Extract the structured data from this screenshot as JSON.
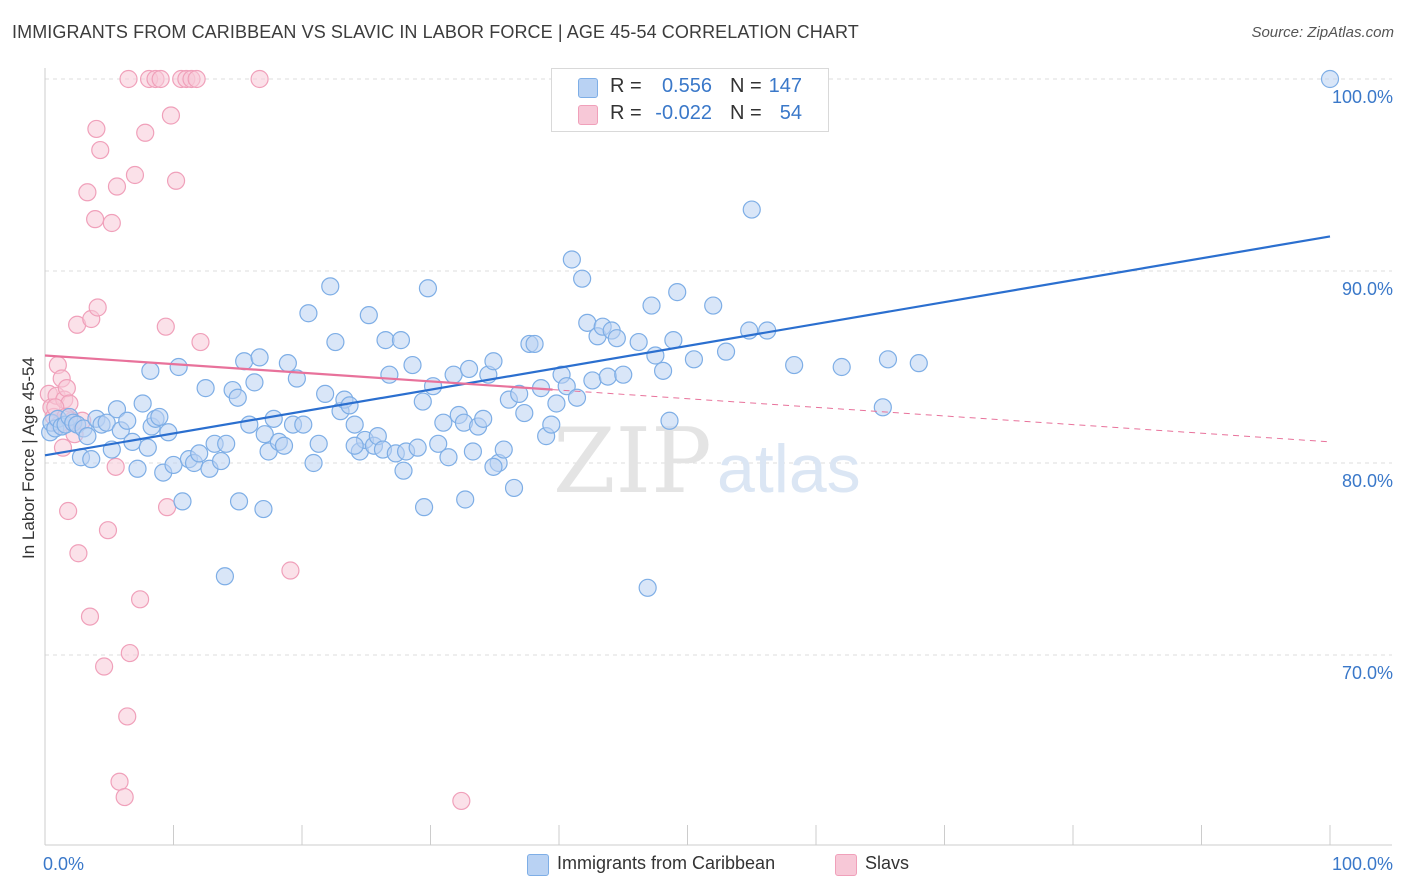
{
  "title": "IMMIGRANTS FROM CARIBBEAN VS SLAVIC IN LABOR FORCE | AGE 45-54 CORRELATION CHART",
  "source": "Source: ZipAtlas.com",
  "watermark": {
    "zip": "ZIP",
    "atlas": "atlas"
  },
  "legend": {
    "r_label": "R =",
    "n_label": "N =",
    "rows": [
      {
        "r": "0.556",
        "n": "147",
        "color": "#7eaee6"
      },
      {
        "r": "-0.022",
        "n": "54",
        "color": "#f2a6bf"
      }
    ]
  },
  "colors": {
    "blue_fill": "#b9d2f3",
    "blue_stroke": "#7eaee6",
    "blue_line": "#2b6fcf",
    "pink_fill": "#f7c8d7",
    "pink_stroke": "#f0a0ba",
    "pink_line": "#e8729b",
    "axis_label": "#3a78c9",
    "grid": "#dddddd"
  },
  "chart_data": {
    "type": "scatter",
    "title": "IMMIGRANTS FROM CARIBBEAN VS SLAVIC IN LABOR FORCE | AGE 45-54 CORRELATION CHART",
    "xlabel": "",
    "ylabel": "In Labor Force | Age 45-54",
    "xlim": [
      0,
      100
    ],
    "ylim": [
      60.5,
      101.5
    ],
    "x_tick_labels": [
      "0.0%",
      "100.0%"
    ],
    "y_ticks": [
      70,
      80,
      90,
      100
    ],
    "y_tick_labels": [
      "70.0%",
      "80.0%",
      "90.0%",
      "100.0%"
    ],
    "grid": true,
    "legend_position": "top-center",
    "series": [
      {
        "name": "Immigrants from Caribbean",
        "color": "#7eaee6",
        "trend": {
          "x": [
            0,
            100
          ],
          "y": [
            80.4,
            91.8
          ],
          "dashed_from": null
        },
        "points": [
          [
            0.4,
            81.6
          ],
          [
            0.5,
            82.1
          ],
          [
            0.8,
            81.8
          ],
          [
            1.0,
            82.3
          ],
          [
            1.3,
            81.9
          ],
          [
            1.6,
            82.0
          ],
          [
            1.9,
            82.4
          ],
          [
            2.2,
            82.1
          ],
          [
            2.5,
            82.0
          ],
          [
            2.8,
            80.3
          ],
          [
            3.0,
            81.8
          ],
          [
            3.3,
            81.4
          ],
          [
            3.6,
            80.2
          ],
          [
            4.0,
            82.3
          ],
          [
            4.4,
            82.0
          ],
          [
            4.8,
            82.1
          ],
          [
            5.2,
            80.7
          ],
          [
            5.6,
            82.8
          ],
          [
            5.9,
            81.7
          ],
          [
            6.4,
            82.2
          ],
          [
            6.8,
            81.1
          ],
          [
            7.2,
            79.7
          ],
          [
            7.6,
            83.1
          ],
          [
            8.0,
            80.8
          ],
          [
            8.3,
            81.9
          ],
          [
            8.6,
            82.3
          ],
          [
            8.9,
            82.4
          ],
          [
            9.2,
            79.5
          ],
          [
            9.6,
            81.6
          ],
          [
            10.0,
            79.9
          ],
          [
            10.4,
            85.0
          ],
          [
            10.7,
            78.0
          ],
          [
            11.2,
            80.2
          ],
          [
            11.6,
            80.0
          ],
          [
            12.0,
            80.5
          ],
          [
            12.5,
            83.9
          ],
          [
            12.8,
            79.7
          ],
          [
            13.2,
            81.0
          ],
          [
            13.7,
            80.1
          ],
          [
            14.1,
            81.0
          ],
          [
            14.6,
            83.8
          ],
          [
            15.0,
            83.4
          ],
          [
            15.5,
            85.3
          ],
          [
            15.1,
            78.0
          ],
          [
            15.9,
            82.0
          ],
          [
            16.3,
            84.2
          ],
          [
            16.7,
            85.5
          ],
          [
            17.1,
            81.5
          ],
          [
            17.4,
            80.6
          ],
          [
            17.8,
            82.3
          ],
          [
            18.2,
            81.1
          ],
          [
            18.6,
            80.9
          ],
          [
            18.9,
            85.2
          ],
          [
            19.3,
            82.0
          ],
          [
            19.6,
            84.4
          ],
          [
            20.1,
            82.0
          ],
          [
            20.5,
            87.8
          ],
          [
            20.9,
            80.0
          ],
          [
            21.3,
            81.0
          ],
          [
            21.8,
            83.6
          ],
          [
            22.2,
            89.2
          ],
          [
            22.6,
            86.3
          ],
          [
            23.0,
            82.7
          ],
          [
            23.3,
            83.3
          ],
          [
            23.7,
            83.0
          ],
          [
            24.1,
            82.0
          ],
          [
            24.5,
            80.6
          ],
          [
            24.9,
            81.2
          ],
          [
            25.2,
            87.7
          ],
          [
            25.6,
            80.9
          ],
          [
            25.9,
            81.4
          ],
          [
            26.3,
            80.7
          ],
          [
            26.8,
            84.6
          ],
          [
            26.5,
            86.4
          ],
          [
            27.3,
            80.5
          ],
          [
            27.7,
            86.4
          ],
          [
            28.1,
            80.6
          ],
          [
            28.6,
            85.1
          ],
          [
            29.0,
            80.8
          ],
          [
            29.4,
            83.2
          ],
          [
            29.8,
            89.1
          ],
          [
            29.5,
            77.7
          ],
          [
            30.2,
            84.0
          ],
          [
            30.6,
            81.0
          ],
          [
            31.0,
            82.1
          ],
          [
            31.4,
            80.3
          ],
          [
            31.8,
            84.6
          ],
          [
            32.2,
            82.5
          ],
          [
            32.6,
            82.1
          ],
          [
            33.0,
            84.9
          ],
          [
            33.3,
            80.6
          ],
          [
            33.7,
            81.9
          ],
          [
            34.1,
            82.3
          ],
          [
            34.5,
            84.6
          ],
          [
            34.9,
            85.3
          ],
          [
            35.3,
            80.0
          ],
          [
            35.7,
            80.7
          ],
          [
            36.1,
            83.3
          ],
          [
            36.5,
            78.7
          ],
          [
            36.9,
            83.6
          ],
          [
            37.3,
            82.6
          ],
          [
            37.7,
            86.2
          ],
          [
            38.1,
            86.2
          ],
          [
            38.6,
            83.9
          ],
          [
            39.0,
            81.4
          ],
          [
            39.4,
            82.0
          ],
          [
            39.8,
            83.1
          ],
          [
            40.2,
            84.6
          ],
          [
            40.6,
            84.0
          ],
          [
            41.0,
            90.6
          ],
          [
            41.4,
            83.4
          ],
          [
            41.8,
            89.6
          ],
          [
            42.2,
            87.3
          ],
          [
            42.6,
            84.3
          ],
          [
            43.0,
            86.6
          ],
          [
            43.4,
            87.1
          ],
          [
            43.8,
            84.5
          ],
          [
            44.1,
            86.9
          ],
          [
            44.5,
            86.5
          ],
          [
            45.0,
            84.6
          ],
          [
            46.2,
            86.3
          ],
          [
            46.9,
            73.5
          ],
          [
            47.2,
            88.2
          ],
          [
            47.5,
            85.6
          ],
          [
            48.1,
            84.8
          ],
          [
            48.6,
            82.2
          ],
          [
            48.9,
            86.4
          ],
          [
            49.2,
            88.9
          ],
          [
            50.5,
            85.4
          ],
          [
            52.0,
            88.2
          ],
          [
            53.0,
            85.8
          ],
          [
            54.8,
            86.9
          ],
          [
            55.0,
            93.2
          ],
          [
            56.2,
            86.9
          ],
          [
            58.3,
            85.1
          ],
          [
            62.0,
            85.0
          ],
          [
            65.2,
            82.9
          ],
          [
            65.6,
            85.4
          ],
          [
            68.0,
            85.2
          ],
          [
            100.0,
            100.0
          ],
          [
            8.2,
            84.8
          ],
          [
            17.0,
            77.6
          ],
          [
            32.7,
            78.1
          ],
          [
            14.0,
            74.1
          ],
          [
            34.9,
            79.8
          ],
          [
            24.1,
            80.9
          ],
          [
            27.9,
            79.6
          ]
        ]
      },
      {
        "name": "Slavs",
        "color": "#f0a0ba",
        "trend": {
          "x": [
            0,
            100
          ],
          "y": [
            85.6,
            81.1
          ],
          "dashed_from": 39.5
        },
        "points": [
          [
            0.3,
            83.6
          ],
          [
            0.5,
            82.9
          ],
          [
            0.7,
            82.4
          ],
          [
            0.9,
            83.5
          ],
          [
            1.0,
            85.1
          ],
          [
            1.1,
            82.0
          ],
          [
            1.3,
            84.4
          ],
          [
            1.5,
            83.3
          ],
          [
            1.7,
            83.9
          ],
          [
            1.9,
            83.1
          ],
          [
            2.1,
            82.2
          ],
          [
            2.3,
            81.5
          ],
          [
            0.8,
            82.9
          ],
          [
            1.4,
            80.8
          ],
          [
            1.6,
            82.4
          ],
          [
            1.8,
            77.5
          ],
          [
            2.5,
            87.2
          ],
          [
            2.9,
            82.2
          ],
          [
            3.3,
            94.1
          ],
          [
            3.6,
            87.5
          ],
          [
            3.9,
            92.7
          ],
          [
            4.1,
            88.1
          ],
          [
            4.3,
            96.3
          ],
          [
            4.6,
            69.4
          ],
          [
            4.9,
            76.5
          ],
          [
            5.2,
            92.5
          ],
          [
            5.6,
            94.4
          ],
          [
            5.8,
            63.4
          ],
          [
            6.2,
            62.6
          ],
          [
            6.4,
            66.8
          ],
          [
            6.6,
            70.1
          ],
          [
            7.0,
            95.0
          ],
          [
            7.4,
            72.9
          ],
          [
            7.8,
            97.2
          ],
          [
            8.1,
            100.0
          ],
          [
            8.6,
            100.0
          ],
          [
            9.0,
            100.0
          ],
          [
            9.4,
            87.1
          ],
          [
            9.8,
            98.1
          ],
          [
            10.2,
            94.7
          ],
          [
            10.6,
            100.0
          ],
          [
            11.0,
            100.0
          ],
          [
            11.4,
            100.0
          ],
          [
            11.8,
            100.0
          ],
          [
            12.1,
            86.3
          ],
          [
            16.7,
            100.0
          ],
          [
            19.1,
            74.4
          ],
          [
            32.4,
            62.4
          ],
          [
            4.0,
            97.4
          ],
          [
            6.5,
            100.0
          ],
          [
            3.5,
            72.0
          ],
          [
            2.6,
            75.3
          ],
          [
            5.5,
            79.8
          ],
          [
            9.5,
            77.7
          ]
        ]
      }
    ]
  },
  "bottom_legend": [
    {
      "label": "Immigrants from Caribbean"
    },
    {
      "label": "Slavs"
    }
  ]
}
